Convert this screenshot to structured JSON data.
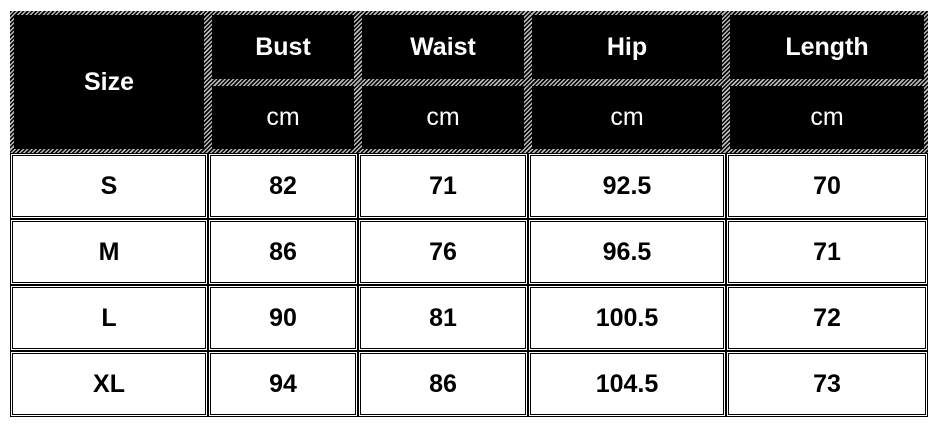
{
  "header": {
    "size_label": "Size",
    "columns": [
      {
        "label": "Bust",
        "unit": "cm"
      },
      {
        "label": "Waist",
        "unit": "cm"
      },
      {
        "label": "Hip",
        "unit": "cm"
      },
      {
        "label": "Length",
        "unit": "cm"
      }
    ]
  },
  "rows": [
    {
      "size": "S",
      "values": [
        "82",
        "71",
        "92.5",
        "70"
      ]
    },
    {
      "size": "M",
      "values": [
        "86",
        "76",
        "96.5",
        "71"
      ]
    },
    {
      "size": "L",
      "values": [
        "90",
        "81",
        "100.5",
        "72"
      ]
    },
    {
      "size": "XL",
      "values": [
        "94",
        "86",
        "104.5",
        "73"
      ]
    }
  ]
}
